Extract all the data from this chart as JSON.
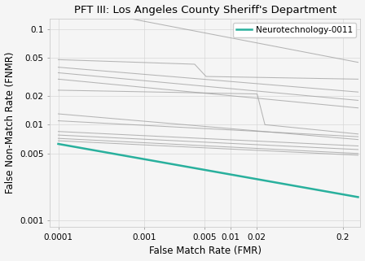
{
  "title": "PFT III: Los Angeles County Sheriff's Department",
  "xlabel": "False Match Rate (FMR)",
  "ylabel": "False Non-Match Rate (FNMR)",
  "legend_label": "Neurotechnology-0011",
  "neuro_color": "#29b09d",
  "gray_color": "#999999",
  "background_color": "#f5f5f5",
  "x_ticks": [
    0.0001,
    0.001,
    0.005,
    0.01,
    0.02,
    0.2
  ],
  "y_ticks": [
    0.001,
    0.005,
    0.01,
    0.02,
    0.05,
    0.1
  ]
}
